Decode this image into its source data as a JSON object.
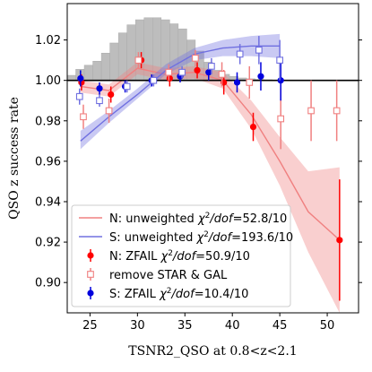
{
  "chart_data": {
    "type": "line",
    "xlabel": "TSNR2_QSO at 0.8<z<2.1",
    "ylabel": "QSO z success rate",
    "xlim": [
      22.6,
      53.3
    ],
    "ylim": [
      0.885,
      1.038
    ],
    "xticks": [
      25,
      30,
      35,
      40,
      45,
      50
    ],
    "yticks": [
      0.9,
      0.92,
      0.94,
      0.96,
      0.98,
      1.0,
      1.02
    ],
    "ytick_labels": [
      "0.90",
      "0.92",
      "0.94",
      "0.96",
      "0.98",
      "1.00",
      "1.02"
    ],
    "reference_line": 1.0,
    "grid": false,
    "legend_position": "lower-left",
    "histogram": {
      "color": "#bdbdbd",
      "edges": [
        22.6,
        23.5,
        24.4,
        25.3,
        26.2,
        27.1,
        28.0,
        28.9,
        29.8,
        30.7,
        31.6,
        32.5,
        33.4,
        34.3,
        35.2,
        36.1,
        37.0,
        37.9,
        38.8,
        39.7,
        40.6,
        41.5,
        42.4,
        43.3,
        44.2,
        45.1
      ],
      "tops": [
        1.0025,
        1.0055,
        1.0075,
        1.0095,
        1.0135,
        1.0185,
        1.0235,
        1.0275,
        1.03,
        1.031,
        1.031,
        1.03,
        1.028,
        1.0255,
        1.02,
        1.0145,
        1.009,
        1.005,
        1.003,
        1.002,
        1.0012,
        1.0008,
        1.0005,
        1.0003,
        1.0001
      ]
    },
    "series": [
      {
        "name": "N: unweighted $\\chi^2/dof=52.8/10$",
        "kind": "band",
        "color": "#f08080",
        "x": [
          24,
          27,
          30,
          33,
          36,
          39,
          42,
          45,
          48,
          51.3
        ],
        "y": [
          0.997,
          0.995,
          1.006,
          1.003,
          1.004,
          1.0,
          0.983,
          0.96,
          0.935,
          0.921
        ],
        "lower": [
          0.994,
          0.992,
          1.003,
          1.0,
          1.001,
          0.996,
          0.976,
          0.948,
          0.915,
          0.885
        ],
        "upper": [
          1.0,
          0.998,
          1.009,
          1.006,
          1.007,
          1.004,
          0.99,
          0.972,
          0.955,
          0.957
        ]
      },
      {
        "name": "S: unweighted $\\chi^2/dof=193.6/10$",
        "kind": "band",
        "color": "#7070e0",
        "x": [
          24,
          27,
          30,
          33,
          36,
          39,
          42,
          45
        ],
        "y": [
          0.97,
          0.982,
          0.993,
          1.005,
          1.013,
          1.016,
          1.017,
          1.017
        ],
        "lower": [
          0.966,
          0.979,
          0.991,
          1.003,
          1.01,
          1.012,
          1.012,
          1.011
        ],
        "upper": [
          0.975,
          0.985,
          0.996,
          1.008,
          1.016,
          1.02,
          1.022,
          1.023
        ]
      },
      {
        "name": "N: ZFAIL $\\chi^2/dof=50.9/10$",
        "kind": "errorbar",
        "marker": "filled-circle",
        "color": "#ff0000",
        "x": [
          24.1,
          27.2,
          30.4,
          33.4,
          36.3,
          39.1,
          42.2,
          51.3
        ],
        "y": [
          0.999,
          0.993,
          1.01,
          1.001,
          1.005,
          0.999,
          0.977,
          0.921
        ],
        "err": [
          0.004,
          0.004,
          0.004,
          0.004,
          0.004,
          0.006,
          0.007,
          0.03
        ]
      },
      {
        "name": "remove STAR & GAL",
        "kind": "errorbar",
        "marker": "open-square",
        "color": "#f08080",
        "x": [
          24.3,
          27.0,
          30.1,
          33.3,
          36.1,
          38.9,
          41.8,
          45.1,
          48.3,
          51.0
        ],
        "y": [
          0.982,
          0.985,
          1.01,
          1.004,
          1.011,
          1.003,
          0.999,
          0.981,
          0.985,
          0.985
        ],
        "err": [
          0.006,
          0.006,
          0.004,
          0.004,
          0.004,
          0.006,
          0.008,
          0.015,
          0.015,
          0.015
        ]
      },
      {
        "name": "S: ZFAIL $\\chi^2/dof=10.4/10$",
        "kind": "errorbar",
        "marker": "filled-circle",
        "color": "#0000dd",
        "x": [
          24.0,
          26.0,
          28.7,
          31.5,
          34.5,
          37.5,
          40.5,
          43.0,
          45.1
        ],
        "y": [
          1.001,
          0.996,
          0.997,
          1.0,
          1.002,
          1.004,
          0.999,
          1.002,
          1.0
        ],
        "err": [
          0.004,
          0.003,
          0.003,
          0.003,
          0.003,
          0.004,
          0.005,
          0.007,
          0.01
        ]
      },
      {
        "name": "",
        "kind": "errorbar",
        "marker": "open-square",
        "color": "#7070e0",
        "x": [
          23.9,
          26.0,
          28.9,
          31.7,
          34.7,
          37.8,
          40.8,
          42.8,
          45.0
        ],
        "y": [
          0.992,
          0.99,
          0.997,
          1.0,
          1.004,
          1.007,
          1.013,
          1.015,
          1.01
        ],
        "err": [
          0.004,
          0.003,
          0.003,
          0.003,
          0.003,
          0.004,
          0.005,
          0.007,
          0.01
        ]
      }
    ]
  }
}
